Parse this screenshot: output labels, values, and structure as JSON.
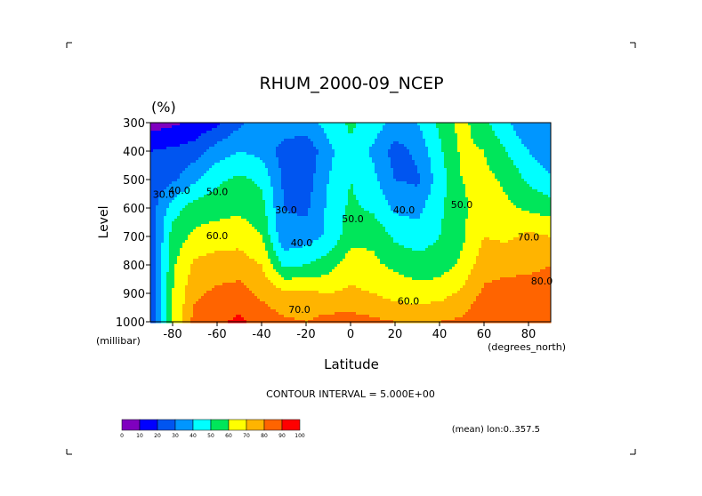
{
  "chart_data": {
    "type": "heatmap",
    "title": "RHUM_2000-09_NCEP",
    "units_label": "(%)",
    "xlabel": "Latitude",
    "x_units": "(degrees_north)",
    "ylabel": "Level",
    "y_units": "(millibar)",
    "x_ticks": [
      "-80",
      "-60",
      "-40",
      "-20",
      "0",
      "20",
      "40",
      "60",
      "80"
    ],
    "y_ticks": [
      "300",
      "400",
      "500",
      "600",
      "700",
      "800",
      "900",
      "1000"
    ],
    "xlim": [
      -90,
      90
    ],
    "ylim": [
      1000,
      300
    ],
    "contour_interval_text": "CONTOUR INTERVAL = 5.000E+00",
    "mean_text": "(mean) lon:0..357.5",
    "contour_labels": [
      {
        "text": "30.0",
        "lat": -84,
        "lev": 555
      },
      {
        "text": "40.0",
        "lat": -77,
        "lev": 540
      },
      {
        "text": "50.0",
        "lat": -60,
        "lev": 545
      },
      {
        "text": "60.0",
        "lat": -60,
        "lev": 700
      },
      {
        "text": "30.0",
        "lat": -29,
        "lev": 610
      },
      {
        "text": "40.0",
        "lat": -22,
        "lev": 725
      },
      {
        "text": "50.0",
        "lat": 1,
        "lev": 640
      },
      {
        "text": "40.0",
        "lat": 24,
        "lev": 610
      },
      {
        "text": "50.0",
        "lat": 50,
        "lev": 590
      },
      {
        "text": "60.0",
        "lat": 26,
        "lev": 930
      },
      {
        "text": "70.0",
        "lat": -23,
        "lev": 960
      },
      {
        "text": "70.0",
        "lat": 80,
        "lev": 705
      },
      {
        "text": "80.0",
        "lat": 86,
        "lev": 860
      }
    ],
    "lat": [
      -90,
      -80,
      -70,
      -60,
      -50,
      -40,
      -30,
      -20,
      -10,
      0,
      10,
      20,
      30,
      40,
      50,
      60,
      70,
      80,
      90
    ],
    "levels": [
      300,
      400,
      500,
      600,
      700,
      800,
      900,
      1000
    ],
    "rh_values": [
      [
        5,
        8,
        12,
        18,
        28,
        34,
        38,
        36,
        44,
        52,
        46,
        36,
        40,
        52,
        64,
        52,
        42,
        30,
        30
      ],
      [
        20,
        22,
        25,
        35,
        40,
        37,
        25,
        22,
        37,
        48,
        38,
        26,
        32,
        48,
        62,
        60,
        50,
        40,
        32
      ],
      [
        22,
        28,
        38,
        48,
        52,
        48,
        28,
        25,
        40,
        50,
        43,
        30,
        28,
        45,
        60,
        63,
        58,
        48,
        42
      ],
      [
        25,
        45,
        55,
        56,
        58,
        54,
        30,
        28,
        42,
        52,
        48,
        38,
        37,
        48,
        58,
        65,
        62,
        58,
        55
      ],
      [
        22,
        55,
        62,
        65,
        66,
        60,
        32,
        35,
        42,
        56,
        58,
        48,
        44,
        50,
        58,
        70,
        68,
        72,
        70
      ],
      [
        20,
        58,
        72,
        75,
        75,
        70,
        48,
        50,
        55,
        66,
        62,
        58,
        55,
        55,
        62,
        76,
        77,
        78,
        80
      ],
      [
        20,
        60,
        78,
        82,
        84,
        78,
        72,
        72,
        70,
        72,
        70,
        66,
        64,
        66,
        72,
        82,
        84,
        84,
        83
      ],
      [
        20,
        60,
        84,
        88,
        92,
        86,
        82,
        80,
        84,
        84,
        82,
        80,
        80,
        80,
        82,
        88,
        88,
        88,
        86
      ]
    ],
    "colorbar": {
      "ticks": [
        "0",
        "10",
        "20",
        "30",
        "40",
        "50",
        "60",
        "70",
        "80",
        "90",
        "100"
      ],
      "colors": [
        "#7f00bf",
        "#0000ff",
        "#0055f0",
        "#0096ff",
        "#00ffff",
        "#00e65a",
        "#ffff00",
        "#ffb400",
        "#ff6400",
        "#ff0000"
      ]
    }
  }
}
